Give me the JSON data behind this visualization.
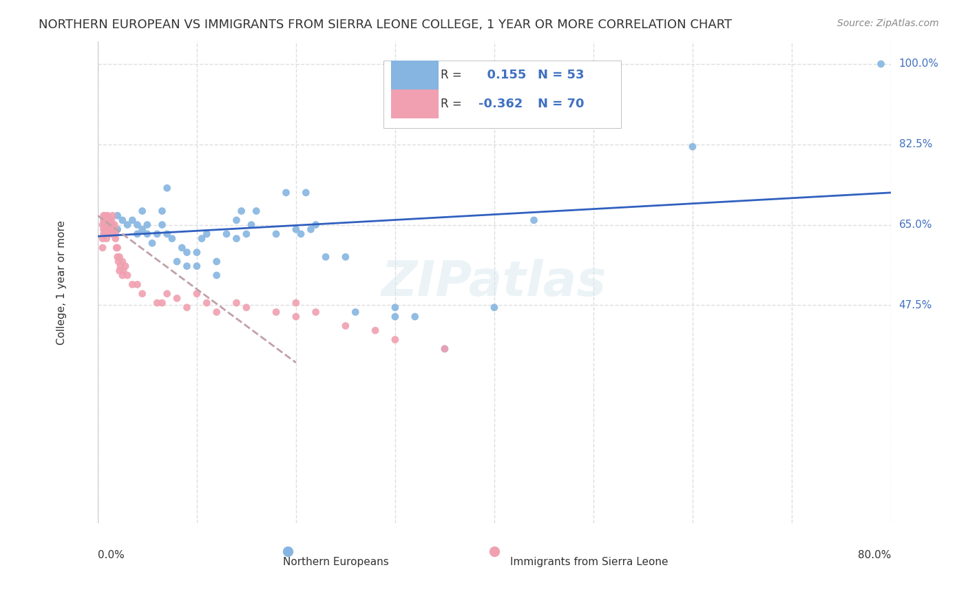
{
  "title": "NORTHERN EUROPEAN VS IMMIGRANTS FROM SIERRA LEONE COLLEGE, 1 YEAR OR MORE CORRELATION CHART",
  "source": "Source: ZipAtlas.com",
  "xlabel": "",
  "ylabel": "College, 1 year or more",
  "xlim": [
    0.0,
    0.8
  ],
  "ylim": [
    0.0,
    1.05
  ],
  "xticks": [
    0.0,
    0.1,
    0.2,
    0.3,
    0.4,
    0.5,
    0.6,
    0.7,
    0.8
  ],
  "xticklabels": [
    "0.0%",
    "",
    "",
    "",
    "",
    "",
    "",
    "",
    "80.0%"
  ],
  "ytick_positions": [
    0.475,
    0.65,
    0.825,
    1.0
  ],
  "ytick_labels": [
    "47.5%",
    "65.0%",
    "82.5%",
    "100.0%"
  ],
  "blue_color": "#85b5e0",
  "pink_color": "#f0a0b0",
  "trendline_blue": "#3060c0",
  "trendline_pink": "#d0a0b0",
  "legend_R_blue": "0.155",
  "legend_N_blue": "53",
  "legend_R_pink": "-0.362",
  "legend_N_pink": "70",
  "watermark": "ZIPatlas",
  "blue_scatter_x": [
    0.02,
    0.025,
    0.02,
    0.03,
    0.035,
    0.04,
    0.04,
    0.045,
    0.045,
    0.05,
    0.05,
    0.055,
    0.06,
    0.065,
    0.065,
    0.07,
    0.07,
    0.075,
    0.08,
    0.085,
    0.09,
    0.09,
    0.1,
    0.1,
    0.105,
    0.11,
    0.12,
    0.12,
    0.13,
    0.14,
    0.14,
    0.145,
    0.15,
    0.155,
    0.16,
    0.18,
    0.19,
    0.2,
    0.205,
    0.21,
    0.215,
    0.22,
    0.23,
    0.25,
    0.26,
    0.3,
    0.3,
    0.32,
    0.35,
    0.4,
    0.44,
    0.6,
    0.79
  ],
  "blue_scatter_y": [
    0.64,
    0.66,
    0.67,
    0.65,
    0.66,
    0.63,
    0.65,
    0.64,
    0.68,
    0.65,
    0.63,
    0.61,
    0.63,
    0.65,
    0.68,
    0.63,
    0.73,
    0.62,
    0.57,
    0.6,
    0.59,
    0.56,
    0.56,
    0.59,
    0.62,
    0.63,
    0.54,
    0.57,
    0.63,
    0.62,
    0.66,
    0.68,
    0.63,
    0.65,
    0.68,
    0.63,
    0.72,
    0.64,
    0.63,
    0.72,
    0.64,
    0.65,
    0.58,
    0.58,
    0.46,
    0.45,
    0.47,
    0.45,
    0.38,
    0.47,
    0.66,
    0.82,
    1.0
  ],
  "pink_scatter_x": [
    0.005,
    0.005,
    0.005,
    0.006,
    0.006,
    0.006,
    0.006,
    0.007,
    0.007,
    0.008,
    0.008,
    0.008,
    0.009,
    0.009,
    0.009,
    0.01,
    0.01,
    0.01,
    0.01,
    0.01,
    0.011,
    0.011,
    0.012,
    0.012,
    0.013,
    0.013,
    0.014,
    0.014,
    0.015,
    0.015,
    0.015,
    0.016,
    0.016,
    0.017,
    0.017,
    0.018,
    0.018,
    0.019,
    0.02,
    0.02,
    0.021,
    0.022,
    0.022,
    0.023,
    0.025,
    0.025,
    0.026,
    0.028,
    0.03,
    0.035,
    0.04,
    0.045,
    0.06,
    0.065,
    0.07,
    0.08,
    0.09,
    0.1,
    0.11,
    0.12,
    0.14,
    0.15,
    0.18,
    0.2,
    0.2,
    0.22,
    0.25,
    0.28,
    0.3,
    0.35
  ],
  "pink_scatter_y": [
    0.6,
    0.62,
    0.65,
    0.64,
    0.66,
    0.63,
    0.67,
    0.65,
    0.64,
    0.63,
    0.65,
    0.67,
    0.63,
    0.65,
    0.62,
    0.64,
    0.63,
    0.65,
    0.66,
    0.67,
    0.63,
    0.65,
    0.64,
    0.66,
    0.65,
    0.63,
    0.64,
    0.66,
    0.63,
    0.65,
    0.67,
    0.64,
    0.63,
    0.65,
    0.64,
    0.63,
    0.62,
    0.6,
    0.58,
    0.6,
    0.57,
    0.55,
    0.58,
    0.56,
    0.54,
    0.57,
    0.55,
    0.56,
    0.54,
    0.52,
    0.52,
    0.5,
    0.48,
    0.48,
    0.5,
    0.49,
    0.47,
    0.5,
    0.48,
    0.46,
    0.48,
    0.47,
    0.46,
    0.48,
    0.45,
    0.46,
    0.43,
    0.42,
    0.4,
    0.38
  ],
  "blue_trend_x": [
    0.0,
    0.8
  ],
  "blue_trend_y_start": 0.625,
  "blue_trend_y_end": 0.72,
  "pink_trend_x": [
    0.0,
    0.2
  ],
  "pink_trend_y_start": 0.67,
  "pink_trend_y_end": 0.35,
  "grid_color": "#dddddd",
  "background_color": "#ffffff"
}
